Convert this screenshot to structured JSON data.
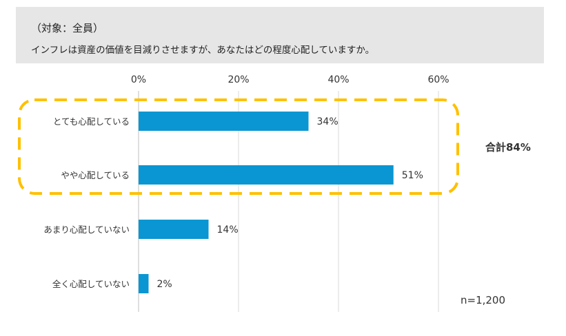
{
  "header": {
    "subject": "（対象：全員）",
    "question": "インフレは資産の価値を目減りさせますが、あなたはどの程度心配していますか。"
  },
  "annotation": {
    "total_label": "合計84%",
    "sample_size": "n=1,200"
  },
  "colors": {
    "bar": "#0a96d2",
    "highlight": "#ffc000",
    "total_text": "#f39800"
  },
  "chart_data": {
    "type": "bar",
    "orientation": "horizontal",
    "categories": [
      "とても心配している",
      "やや心配している",
      "あまり心配していない",
      "全く心配していない"
    ],
    "values": [
      34,
      51,
      14,
      2
    ],
    "value_labels": [
      "34%",
      "51%",
      "14%",
      "2%"
    ],
    "xlim": [
      0,
      60
    ],
    "xticks": [
      0,
      20,
      40,
      60
    ],
    "xtick_labels": [
      "0%",
      "20%",
      "40%",
      "60%"
    ],
    "grid": true
  }
}
